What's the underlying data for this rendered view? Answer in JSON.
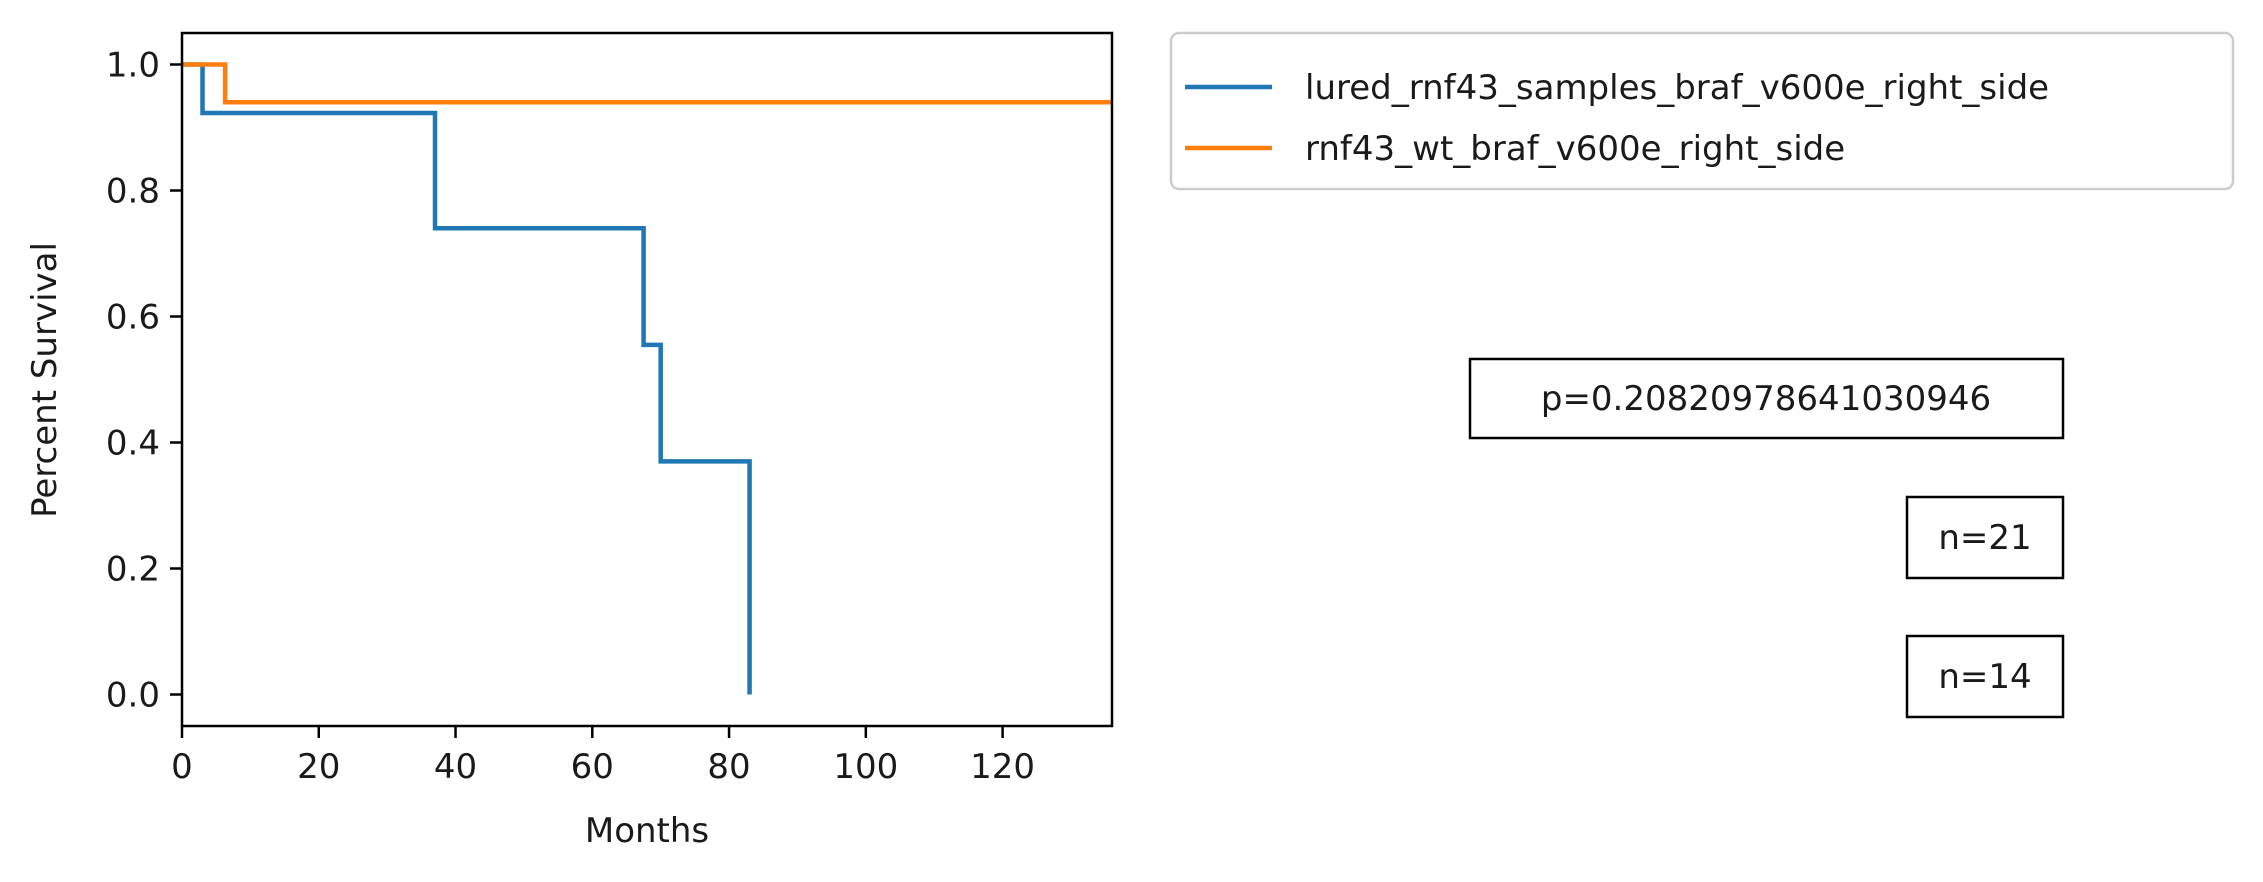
{
  "chart_data": {
    "type": "line",
    "step": true,
    "xlabel": "Months",
    "ylabel": "Percent Survival",
    "xlim": [
      0,
      136
    ],
    "ylim": [
      -0.05,
      1.05
    ],
    "xticks": [
      0,
      20,
      40,
      60,
      80,
      100,
      120
    ],
    "yticks": [
      0.0,
      0.2,
      0.4,
      0.6,
      0.8,
      1.0
    ],
    "xtick_labels": [
      "0",
      "20",
      "40",
      "60",
      "80",
      "100",
      "120"
    ],
    "ytick_labels": [
      "0.0",
      "0.2",
      "0.4",
      "0.6",
      "0.8",
      "1.0"
    ],
    "grid": false,
    "legend_position": "outside-top-right",
    "series": [
      {
        "name": "lured_rnf43_samples_braf_v600e_right_side",
        "color": "#1f77b4",
        "x": [
          0,
          3,
          37,
          67.5,
          70,
          83,
          83
        ],
        "y": [
          1.0,
          0.923,
          0.74,
          0.555,
          0.37,
          0.37,
          0.0
        ]
      },
      {
        "name": "rnf43_wt_braf_v600e_right_side",
        "color": "#ff7f0e",
        "x": [
          0,
          6.3,
          136
        ],
        "y": [
          1.0,
          0.94,
          0.94
        ]
      }
    ],
    "annotations": [
      "p=0.20820978641030946",
      "n=21",
      "n=14"
    ]
  }
}
